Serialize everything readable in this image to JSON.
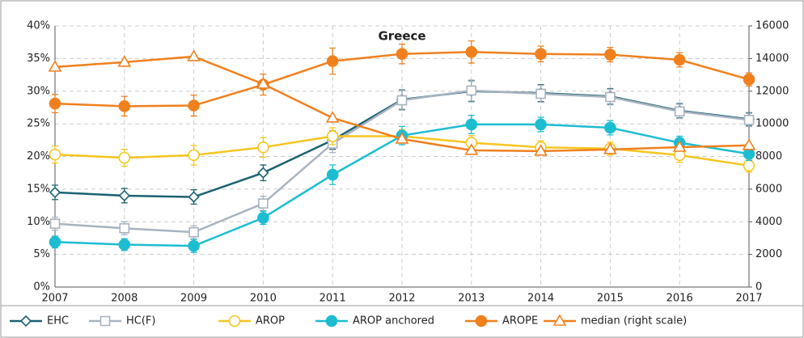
{
  "chart_data": {
    "type": "line",
    "title": "Greece",
    "categories": [
      "2007",
      "2008",
      "2009",
      "2010",
      "2011",
      "2012",
      "2013",
      "2014",
      "2015",
      "2016",
      "2017"
    ],
    "series": [
      {
        "name": "EHC",
        "color": "#1b6272",
        "marker": "diamond",
        "filled": false,
        "values": [
          14.5,
          14.0,
          13.8,
          17.5,
          22.5,
          28.7,
          30.0,
          29.7,
          29.2,
          27.0,
          25.7
        ],
        "errors": [
          1.1,
          1.1,
          1.1,
          1.2,
          1.4,
          1.5,
          1.6,
          1.3,
          1.2,
          1.1,
          1.0
        ]
      },
      {
        "name": "HC(F)",
        "color": "#a8b3c1",
        "marker": "square",
        "filled": false,
        "values": [
          9.7,
          9.0,
          8.4,
          12.8,
          22.0,
          28.6,
          30.1,
          29.6,
          29.1,
          26.9,
          25.6
        ],
        "errors": [
          1.0,
          1.0,
          1.0,
          1.1,
          1.4,
          1.5,
          1.6,
          1.3,
          1.2,
          1.1,
          1.0
        ]
      },
      {
        "name": "AROP",
        "color": "#f6c51f",
        "marker": "circle",
        "filled": false,
        "values": [
          20.3,
          19.8,
          20.2,
          21.4,
          23.1,
          23.1,
          22.1,
          21.4,
          21.2,
          20.2,
          18.6
        ],
        "errors": [
          1.3,
          1.3,
          1.5,
          1.5,
          1.3,
          1.0,
          1.1,
          1.0,
          1.0,
          1.1,
          1.0
        ]
      },
      {
        "name": "AROP anchored",
        "color": "#1cbdd1",
        "marker": "circle",
        "filled": true,
        "values": [
          6.9,
          6.5,
          6.3,
          10.6,
          17.2,
          23.2,
          24.9,
          24.9,
          24.4,
          22.1,
          20.4
        ],
        "errors": [
          0.9,
          0.9,
          1.0,
          1.0,
          1.5,
          1.4,
          1.4,
          1.1,
          1.1,
          1.0,
          1.0
        ]
      },
      {
        "name": "AROPE",
        "color": "#f0801e",
        "marker": "circle",
        "filled": true,
        "values": [
          28.1,
          27.7,
          27.8,
          31.0,
          34.6,
          35.7,
          36.0,
          35.7,
          35.6,
          34.8,
          31.8
        ],
        "errors": [
          1.4,
          1.5,
          1.6,
          1.6,
          2.0,
          1.5,
          1.7,
          1.2,
          1.1,
          1.1,
          1.0
        ]
      },
      {
        "name": "median (right scale)",
        "color": "#f0801e",
        "marker": "triangle",
        "filled": false,
        "axis": "y2",
        "values": [
          13480,
          13780,
          14120,
          12440,
          10360,
          9070,
          8380,
          8330,
          8430,
          8570,
          8680
        ]
      }
    ],
    "ylim": [
      0,
      40
    ],
    "yticks": [
      {
        "value": 0,
        "label": "0%"
      },
      {
        "value": 5,
        "label": "5%"
      },
      {
        "value": 10,
        "label": "10%"
      },
      {
        "value": 15,
        "label": "15%"
      },
      {
        "value": 20,
        "label": "20%"
      },
      {
        "value": 25,
        "label": "25%"
      },
      {
        "value": 30,
        "label": "30%"
      },
      {
        "value": 35,
        "label": "35%"
      },
      {
        "value": 40,
        "label": "40%"
      }
    ],
    "y2lim": [
      0,
      16000
    ],
    "y2ticks": [
      0,
      2000,
      4000,
      6000,
      8000,
      10000,
      12000,
      14000,
      16000
    ],
    "grid": true,
    "legend": "bottom"
  }
}
